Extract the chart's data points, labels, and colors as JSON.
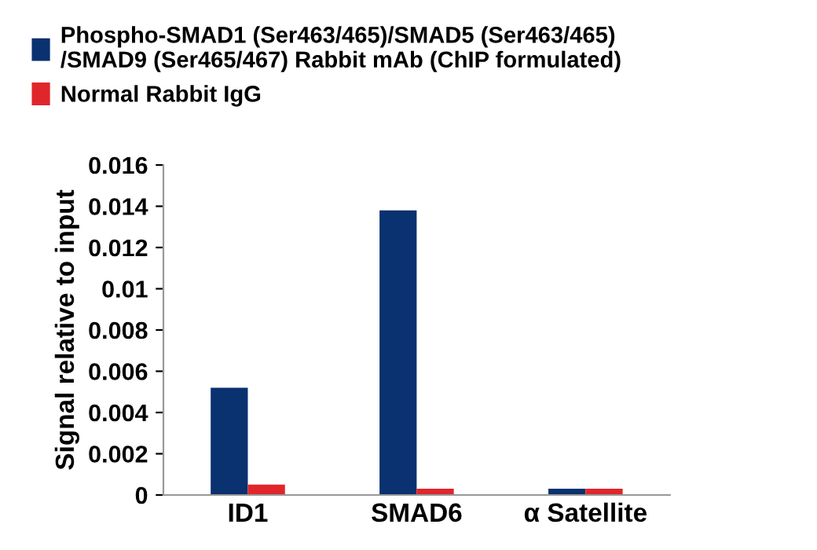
{
  "chart_data": {
    "type": "bar",
    "ylabel": "Signal relative to input",
    "categories": [
      "ID1",
      "SMAD6",
      "α Satellite"
    ],
    "series": [
      {
        "name": "Phospho-SMAD1 (Ser463/465)/SMAD5 (Ser463/465)\n/SMAD9 (Ser465/467) Rabbit mAb (ChIP formulated)",
        "color": "#0a3170",
        "values": [
          0.0052,
          0.0138,
          0.0003
        ]
      },
      {
        "name": "Normal Rabbit IgG",
        "color": "#e0262b",
        "values": [
          0.0005,
          0.0003,
          0.0003
        ]
      }
    ],
    "ylim": [
      0,
      0.016
    ],
    "yticks": [
      0,
      0.002,
      0.004,
      0.006,
      0.008,
      0.01,
      0.012,
      0.014,
      0.016
    ],
    "grid": false,
    "legend": "top"
  }
}
